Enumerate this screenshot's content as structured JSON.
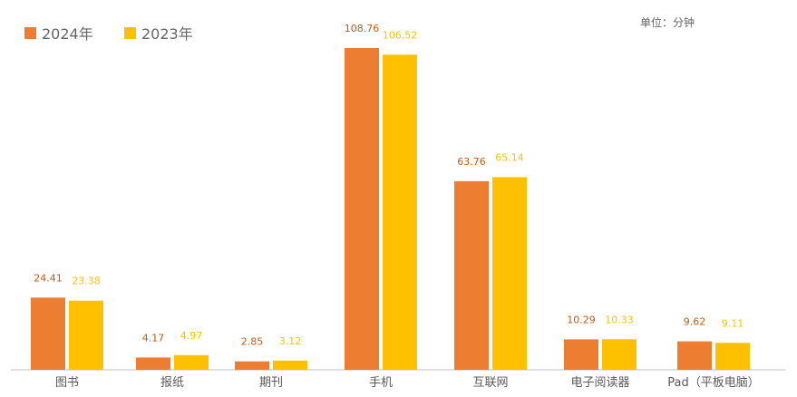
{
  "chart_data": {
    "type": "bar",
    "title": "",
    "xlabel": "",
    "ylabel": "",
    "unit_label": "单位：分钟",
    "categories": [
      "图书",
      "报纸",
      "期刊",
      "手机",
      "互联网",
      "电子阅读器",
      "Pad（平板电脑）"
    ],
    "series": [
      {
        "name": "2024年",
        "color": "#ED7D31",
        "values": [
          24.41,
          4.17,
          2.85,
          108.76,
          63.76,
          10.29,
          9.62
        ]
      },
      {
        "name": "2023年",
        "color": "#FFC000",
        "values": [
          23.38,
          4.97,
          3.12,
          106.52,
          65.14,
          10.33,
          9.11
        ]
      }
    ],
    "value_labels": [
      [
        "24.41",
        "4.17",
        "2.85",
        "108.76",
        "63.76",
        "10.29",
        "9.62"
      ],
      [
        "23.38",
        "4.97",
        "3.12",
        "106.52",
        "65.14",
        "10.33",
        "9.11"
      ]
    ],
    "ylim": [
      0,
      120
    ],
    "grid": false,
    "legend_position": "top-left"
  }
}
